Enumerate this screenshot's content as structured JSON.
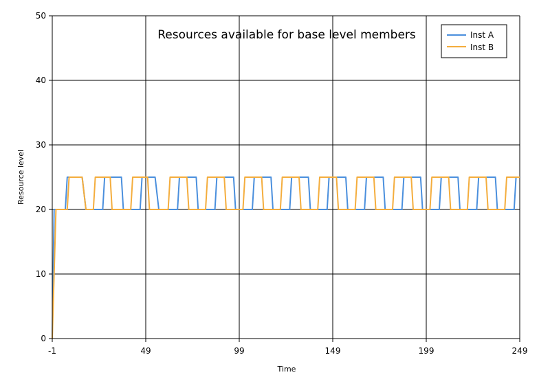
{
  "chart_data": {
    "type": "line",
    "title": "Resources available for base level members",
    "xlabel": "Time",
    "ylabel": "Resource level",
    "xlim": [
      -1,
      249
    ],
    "ylim": [
      0,
      50
    ],
    "x_ticks": [
      -1,
      49,
      99,
      149,
      199,
      249
    ],
    "y_ticks": [
      0,
      10,
      20,
      30,
      40,
      50
    ],
    "grid": true,
    "legend_position": "top-right",
    "series": [
      {
        "name": "Inst A",
        "color": "#4a8fdd",
        "x": [
          -1,
          0,
          1,
          2,
          3,
          6,
          7,
          8,
          10,
          11,
          13,
          14,
          15,
          17,
          19,
          26,
          27,
          28,
          36,
          37,
          38,
          40,
          41,
          46,
          47,
          48,
          50,
          51,
          54,
          56,
          57,
          66,
          67,
          68,
          76,
          77,
          78,
          79,
          86,
          87,
          88,
          96,
          97,
          98,
          100,
          106,
          107,
          108,
          116,
          117,
          118,
          120,
          126,
          127,
          128,
          136,
          137,
          138,
          139,
          146,
          147,
          148,
          156,
          157,
          158,
          166,
          167,
          168,
          176,
          177,
          178,
          186,
          187,
          188,
          196,
          197,
          198,
          200,
          206,
          207,
          208,
          216,
          217,
          218,
          226,
          227,
          228,
          236,
          237,
          238,
          240,
          246,
          247,
          248,
          249
        ],
        "y": [
          0,
          20,
          20,
          20,
          20,
          20,
          25,
          25,
          25,
          25,
          25,
          25,
          25,
          20,
          20,
          20,
          25,
          25,
          25,
          20,
          20,
          20,
          20,
          20,
          25,
          25,
          25,
          25,
          25,
          20,
          20,
          20,
          25,
          25,
          25,
          20,
          20,
          20,
          20,
          25,
          25,
          25,
          20,
          20,
          20,
          20,
          25,
          25,
          25,
          20,
          20,
          20,
          20,
          25,
          25,
          25,
          20,
          20,
          20,
          20,
          25,
          25,
          25,
          20,
          20,
          20,
          25,
          25,
          25,
          20,
          20,
          20,
          25,
          25,
          25,
          20,
          20,
          20,
          20,
          25,
          25,
          25,
          20,
          20,
          20,
          25,
          25,
          25,
          20,
          20,
          20,
          20,
          25,
          25,
          25
        ]
      },
      {
        "name": "Inst B",
        "color": "#f4ad3d",
        "x": [
          -1,
          0,
          1,
          2,
          3,
          6,
          7,
          8,
          10,
          11,
          13,
          14,
          15,
          17,
          19,
          21,
          22,
          23,
          30,
          31,
          32,
          34,
          35,
          41,
          42,
          43,
          50,
          51,
          52,
          61,
          62,
          63,
          71,
          72,
          73,
          81,
          82,
          83,
          91,
          92,
          93,
          101,
          102,
          103,
          111,
          112,
          113,
          121,
          122,
          123,
          131,
          132,
          133,
          141,
          142,
          143,
          151,
          152,
          153,
          161,
          162,
          163,
          171,
          172,
          173,
          181,
          182,
          183,
          191,
          192,
          193,
          201,
          202,
          203,
          211,
          212,
          213,
          221,
          222,
          223,
          231,
          232,
          233,
          241,
          242,
          243,
          249
        ],
        "y": [
          0,
          10,
          20,
          20,
          20,
          20,
          20,
          25,
          25,
          25,
          25,
          25,
          25,
          20,
          20,
          20,
          25,
          25,
          25,
          20,
          20,
          20,
          20,
          20,
          25,
          25,
          25,
          20,
          20,
          20,
          25,
          25,
          25,
          20,
          20,
          20,
          25,
          25,
          25,
          20,
          20,
          20,
          25,
          25,
          25,
          20,
          20,
          20,
          25,
          25,
          25,
          20,
          20,
          20,
          25,
          25,
          25,
          20,
          20,
          20,
          25,
          25,
          25,
          20,
          20,
          20,
          25,
          25,
          25,
          20,
          20,
          20,
          25,
          25,
          25,
          20,
          20,
          20,
          25,
          25,
          25,
          20,
          20,
          20,
          25,
          25,
          25
        ]
      }
    ]
  }
}
